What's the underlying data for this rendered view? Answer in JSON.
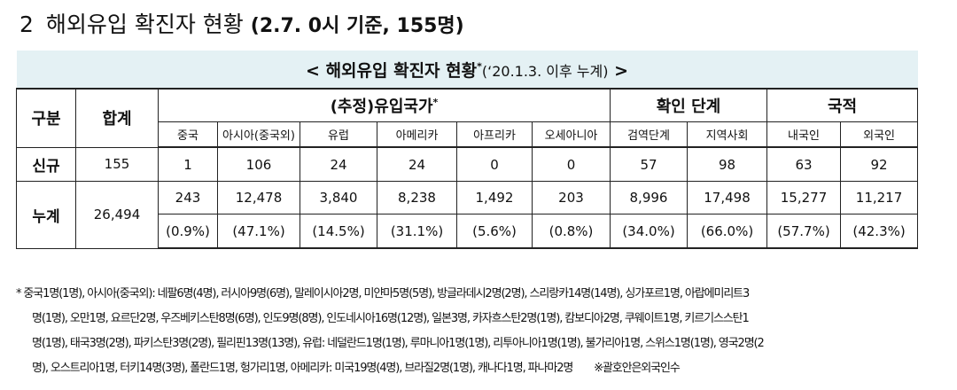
{
  "header": {
    "number": "2",
    "title": "해외유입 확진자 현황",
    "note": "(2.7. 0시 기준, 155명)"
  },
  "table": {
    "caption": {
      "text": "< 해외유입 확진자 현황",
      "mark": "*",
      "suffix": "(‘20.1.3. 이후 누계)",
      "end": ">"
    },
    "head": {
      "division": "구분",
      "total": "합계",
      "countries": "(추정)유입국가",
      "countries_mark": "*",
      "stage": "확인 단계",
      "nationality": "국적",
      "sub": [
        "중국",
        "아시아(중국외)",
        "유럽",
        "아메리카",
        "아프리카",
        "오세아니아",
        "검역단계",
        "지역사회",
        "내국인",
        "외국인"
      ]
    },
    "new": {
      "label": "신규",
      "total": "155",
      "values": [
        "1",
        "106",
        "24",
        "24",
        "0",
        "0",
        "57",
        "98",
        "63",
        "92"
      ]
    },
    "cumulative": {
      "label": "누계",
      "total": "26,494",
      "counts": [
        "243",
        "12,478",
        "3,840",
        "8,238",
        "1,492",
        "203",
        "8,996",
        "17,498",
        "15,277",
        "11,217"
      ],
      "shares": [
        "(0.9%)",
        "(47.1%)",
        "(14.5%)",
        "(31.1%)",
        "(5.6%)",
        "(0.8%)",
        "(34.0%)",
        "(66.0%)",
        "(57.7%)",
        "(42.3%)"
      ]
    }
  },
  "footnote": {
    "lines": [
      "* 중국1명(1명), 아시아(중국외): 네팔6명(4명), 러시아9명(6명), 말레이시아2명, 미얀마5명(5명), 방글라데시2명(2명), 스리랑카14명(14명), 싱가포르1명, 아랍에미리트3",
      "명(1명), 오만1명, 요르단2명, 우즈베키스탄8명(6명), 인도9명(8명), 인도네시아16명(12명), 일본3명, 카자흐스탄2명(1명), 캄보디아2명, 쿠웨이트1명, 키르기스스탄1",
      "명(1명), 태국3명(2명), 파키스탄3명(2명), 필리핀13명(13명), 유럽: 네덜란드1명(1명), 루마니아1명(1명), 리투아니아1명(1명), 불가리아1명, 스위스1명(1명), 영국2명(2",
      "명), 오스트리아1명, 터키14명(3명), 폴란드1명, 헝가리1명, 아메리카: 미국19명(4명), 브라질2명(1명), 캐나다1명, 파나마2명"
    ],
    "remark": "※괄호안은외국인수"
  }
}
